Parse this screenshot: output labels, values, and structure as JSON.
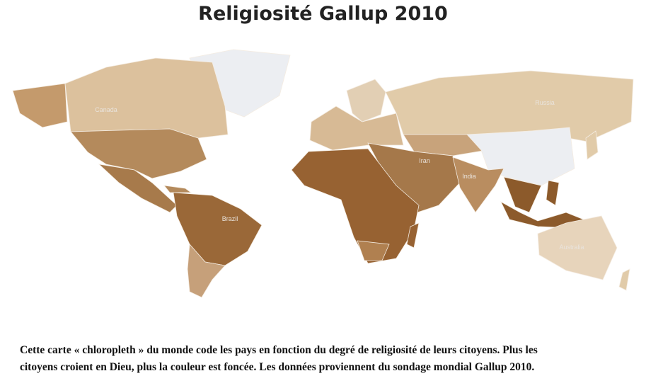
{
  "title": "Religiosité Gallup 2010",
  "map": {
    "labels": [
      "Canada",
      "Russia",
      "Brazil",
      "Iran",
      "India",
      "Australia"
    ]
  },
  "caption": {
    "lines": [
      "Cette carte « chloropleth » du monde code les pays en fonction du degré de religiosité de leurs citoyens. Plus les",
      "citoyens croient en Dieu, plus la couleur est foncée. Les données proviennent du sondage mondial Gallup 2010."
    ]
  }
}
